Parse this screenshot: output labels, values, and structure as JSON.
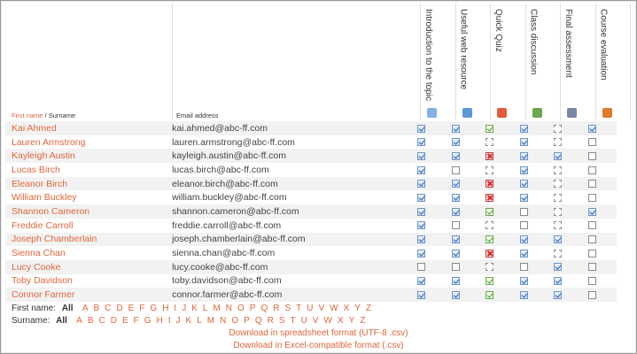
{
  "header": {
    "first_name": "First name",
    "separator": " / ",
    "surname": "Surname",
    "email": "Email address"
  },
  "activities": [
    {
      "label": "Introduction to the topic",
      "icon": "page-icon"
    },
    {
      "label": "Useful web resource",
      "icon": "url-icon"
    },
    {
      "label": "Quick Quiz",
      "icon": "quiz-icon"
    },
    {
      "label": "Class discussion",
      "icon": "forum-icon"
    },
    {
      "label": "Final assessment",
      "icon": "assignment-icon"
    },
    {
      "label": "Course evaluation",
      "icon": "feedback-icon"
    }
  ],
  "students": [
    {
      "name": "Kai Ahmed",
      "email": "kai.ahmed@abc-ff.com",
      "states": [
        "checked",
        "checked",
        "passed",
        "checked",
        "pending",
        "checked"
      ]
    },
    {
      "name": "Lauren Armstrong",
      "email": "lauren.armstrong@abc-ff.com",
      "states": [
        "checked",
        "checked",
        "pending",
        "checked",
        "pending",
        "unchecked"
      ]
    },
    {
      "name": "Kayleigh Austin",
      "email": "kayleigh.austin@abc-ff.com",
      "states": [
        "checked",
        "checked",
        "failed",
        "checked",
        "checked",
        "unchecked"
      ]
    },
    {
      "name": "Lucas Birch",
      "email": "lucas.birch@abc-ff.com",
      "states": [
        "checked",
        "unchecked",
        "pending",
        "checked",
        "pending",
        "unchecked"
      ]
    },
    {
      "name": "Eleanor Birch",
      "email": "eleanor.birch@abc-ff.com",
      "states": [
        "checked",
        "checked",
        "failed",
        "checked",
        "pending",
        "unchecked"
      ]
    },
    {
      "name": "William Buckley",
      "email": "william.buckley@abc-ff.com",
      "states": [
        "checked",
        "checked",
        "failed",
        "checked",
        "pending",
        "unchecked"
      ]
    },
    {
      "name": "Shannon Cameron",
      "email": "shannon.cameron@abc-ff.com",
      "states": [
        "checked",
        "checked",
        "passed",
        "unchecked",
        "pending",
        "checked"
      ]
    },
    {
      "name": "Freddie Carroll",
      "email": "freddie.carroll@abc-ff.com",
      "states": [
        "checked",
        "unchecked",
        "pending",
        "unchecked",
        "pending",
        "unchecked"
      ]
    },
    {
      "name": "Joseph Chamberlain",
      "email": "joseph.chamberlain@abc-ff.com",
      "states": [
        "checked",
        "checked",
        "passed",
        "checked",
        "checked",
        "unchecked"
      ]
    },
    {
      "name": "Sienna Chan",
      "email": "sienna.chan@abc-ff.com",
      "states": [
        "checked",
        "checked",
        "failed",
        "checked",
        "pending",
        "unchecked"
      ]
    },
    {
      "name": "Lucy Cooke",
      "email": "lucy.cooke@abc-ff.com",
      "states": [
        "unchecked",
        "unchecked",
        "pending",
        "unchecked",
        "checked",
        "unchecked"
      ]
    },
    {
      "name": "Toby Davidson",
      "email": "toby.davidson@abc-ff.com",
      "states": [
        "checked",
        "checked",
        "passed",
        "checked",
        "checked",
        "unchecked"
      ]
    },
    {
      "name": "Connor Farmer",
      "email": "connor.farmer@abc-ff.com",
      "states": [
        "checked",
        "checked",
        "passed",
        "checked",
        "checked",
        "unchecked"
      ]
    }
  ],
  "filters": {
    "first_name_label": "First name:",
    "surname_label": "Surname:",
    "all": "All",
    "letters": [
      "A",
      "B",
      "C",
      "D",
      "E",
      "F",
      "G",
      "H",
      "I",
      "J",
      "K",
      "L",
      "M",
      "N",
      "O",
      "P",
      "Q",
      "R",
      "S",
      "T",
      "U",
      "V",
      "W",
      "X",
      "Y",
      "Z"
    ]
  },
  "downloads": {
    "utf8": "Download in spreadsheet format (UTF-8 .csv)",
    "excel": "Download in Excel-compatible format (.csv)"
  }
}
